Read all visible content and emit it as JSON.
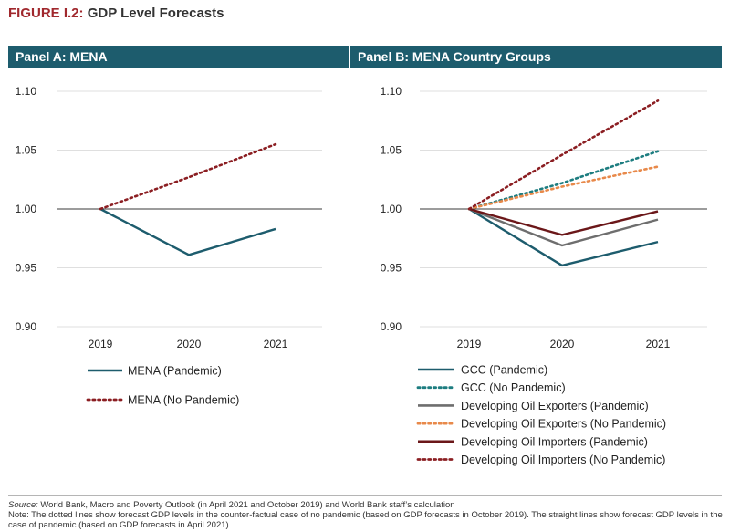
{
  "figure": {
    "label": "FIGURE I.2:",
    "title": "GDP Level Forecasts"
  },
  "chart_data": [
    {
      "type": "line",
      "title": "Panel A: MENA",
      "categories": [
        "2019",
        "2020",
        "2021"
      ],
      "ylim": [
        0.9,
        1.1
      ],
      "yticks": [
        "1.10",
        "1.05",
        "1.00",
        "0.95",
        "0.90"
      ],
      "grid": "horizontal",
      "legend_position": "bottom",
      "series": [
        {
          "name": "MENA (Pandemic)",
          "values": [
            1.0,
            0.961,
            0.983
          ],
          "color": "#1d5c6d",
          "style": "solid"
        },
        {
          "name": "MENA (No Pandemic)",
          "values": [
            1.0,
            1.027,
            1.055
          ],
          "color": "#8b1e22",
          "style": "dotted"
        }
      ]
    },
    {
      "type": "line",
      "title": "Panel B: MENA Country Groups",
      "categories": [
        "2019",
        "2020",
        "2021"
      ],
      "ylim": [
        0.9,
        1.1
      ],
      "yticks": [
        "1.10",
        "1.05",
        "1.00",
        "0.95",
        "0.90"
      ],
      "grid": "horizontal",
      "legend_position": "bottom",
      "series": [
        {
          "name": "GCC (Pandemic)",
          "values": [
            1.0,
            0.952,
            0.972
          ],
          "color": "#1d5c6d",
          "style": "solid"
        },
        {
          "name": "GCC (No Pandemic)",
          "values": [
            1.0,
            1.022,
            1.049
          ],
          "color": "#1d7d80",
          "style": "dotted"
        },
        {
          "name": "Developing Oil Exporters (Pandemic)",
          "values": [
            1.0,
            0.969,
            0.991
          ],
          "color": "#6e6e6e",
          "style": "solid"
        },
        {
          "name": "Developing Oil Exporters (No Pandemic)",
          "values": [
            1.0,
            1.019,
            1.036
          ],
          "color": "#e8894a",
          "style": "dotted"
        },
        {
          "name": "Developing Oil Importers (Pandemic)",
          "values": [
            1.0,
            0.978,
            0.998
          ],
          "color": "#6b1719",
          "style": "solid"
        },
        {
          "name": "Developing Oil Importers (No Pandemic)",
          "values": [
            1.0,
            1.046,
            1.092
          ],
          "color": "#8b1e22",
          "style": "dotted"
        }
      ]
    }
  ],
  "footnote": {
    "source_label": "Source:",
    "source_text": " World Bank, Macro and Poverty Outlook (in April 2021 and October 2019) and World Bank staff’s calculation",
    "note": "Note: The dotted lines show forecast GDP levels in the counter-factual case of no pandemic (based on GDP forecasts in October 2019). The straight lines show forecast GDP levels in the case of pandemic (based on GDP forecasts in April 2021)."
  }
}
